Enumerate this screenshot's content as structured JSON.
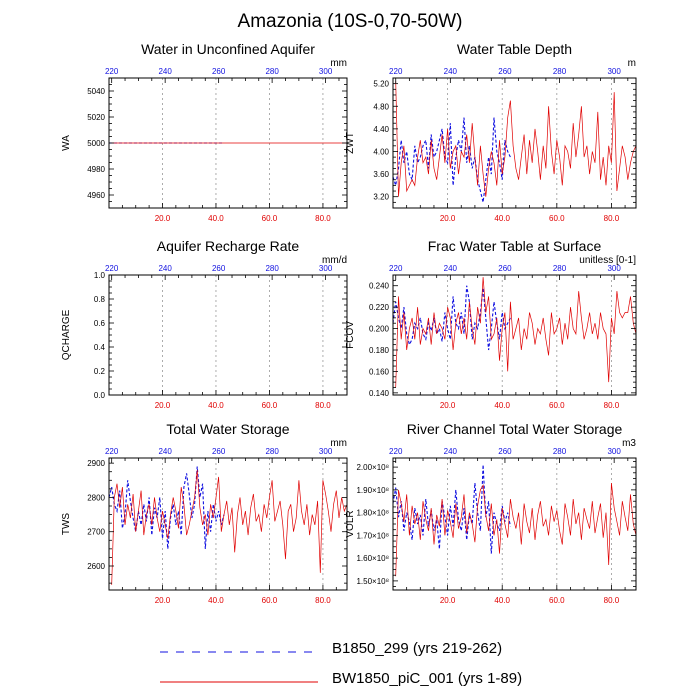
{
  "figure": {
    "title": "Amazonia (10S-0,70-50W)"
  },
  "colors": {
    "blue": "#1010e0",
    "red": "#e00000",
    "grid": "#999999",
    "axis": "#000000"
  },
  "legend": [
    {
      "label": "B1850_299 (yrs 219-262)",
      "color": "#1010e0",
      "style": "dashed"
    },
    {
      "label": "BW1850_piC_001 (yrs 1-89)",
      "color": "#e00000",
      "style": "solid"
    }
  ],
  "chart_data": [
    {
      "type": "line",
      "id": "wa",
      "title": "Water in Unconfined Aquifer",
      "ylabel": "WA",
      "units": "mm",
      "xlim_bottom": [
        0,
        89
      ],
      "xticks_bottom": [
        20,
        40,
        60,
        80
      ],
      "xtick_labels_bottom": [
        "20.0",
        "40.0",
        "60.0",
        "80.0"
      ],
      "xlim_top": [
        219,
        308
      ],
      "xticks_top": [
        220,
        240,
        260,
        280,
        300
      ],
      "xtick_labels_top": [
        "220",
        "240",
        "260",
        "280",
        "300"
      ],
      "ylim": [
        4950,
        5050
      ],
      "yticks": [
        4960,
        4980,
        5000,
        5020,
        5040
      ],
      "ytick_labels": [
        "4960",
        "4980",
        "5000",
        "5020",
        "5040"
      ],
      "series": [
        {
          "name": "B1850_299 (yrs 219-262)",
          "axis": "top",
          "x_start": 219,
          "values": [
            5000,
            5000,
            5000,
            5000,
            5000,
            5000,
            5000,
            5000,
            5000,
            5000,
            5000,
            5000,
            5000,
            5000,
            5000,
            5000,
            5000,
            5000,
            5000,
            5000,
            5000,
            5000,
            5000,
            5000,
            5000,
            5000,
            5000,
            5000,
            5000,
            5000,
            5000,
            5000,
            5000,
            5000,
            5000,
            5000,
            5000,
            5000,
            5000,
            5000,
            5000,
            5000,
            5000,
            5000
          ]
        },
        {
          "name": "BW1850_piC_001 (yrs 1-89)",
          "axis": "bottom",
          "x_start": 1,
          "values": [
            5000,
            5000,
            5000,
            5000,
            5000,
            5000,
            5000,
            5000,
            5000,
            5000,
            5000,
            5000,
            5000,
            5000,
            5000,
            5000,
            5000,
            5000,
            5000,
            5000,
            5000,
            5000,
            5000,
            5000,
            5000,
            5000,
            5000,
            5000,
            5000,
            5000,
            5000,
            5000,
            5000,
            5000,
            5000,
            5000,
            5000,
            5000,
            5000,
            5000,
            5000,
            5000,
            5000,
            5000,
            5000,
            5000,
            5000,
            5000,
            5000,
            5000,
            5000,
            5000,
            5000,
            5000,
            5000,
            5000,
            5000,
            5000,
            5000,
            5000,
            5000,
            5000,
            5000,
            5000,
            5000,
            5000,
            5000,
            5000,
            5000,
            5000,
            5000,
            5000,
            5000,
            5000,
            5000,
            5000,
            5000,
            5000,
            5000,
            5000,
            5000,
            5000,
            5000,
            5000,
            5000,
            5000,
            5000,
            5000,
            5000
          ]
        }
      ]
    },
    {
      "type": "line",
      "id": "zwt",
      "title": "Water Table Depth",
      "ylabel": "ZWT",
      "units": "m",
      "xlim_bottom": [
        0,
        89
      ],
      "xticks_bottom": [
        20,
        40,
        60,
        80
      ],
      "xtick_labels_bottom": [
        "20.0",
        "40.0",
        "60.0",
        "80.0"
      ],
      "xlim_top": [
        219,
        308
      ],
      "xticks_top": [
        220,
        240,
        260,
        280,
        300
      ],
      "xtick_labels_top": [
        "220",
        "240",
        "260",
        "280",
        "300"
      ],
      "ylim": [
        3.0,
        5.3
      ],
      "yticks": [
        3.2,
        3.6,
        4.0,
        4.4,
        4.8,
        5.2
      ],
      "ytick_labels": [
        "3.20",
        "3.60",
        "4.00",
        "4.40",
        "4.80",
        "5.20"
      ],
      "series": [
        {
          "name": "B1850_299 (yrs 219-262)",
          "axis": "top",
          "x_start": 219,
          "values": [
            3.55,
            3.4,
            3.7,
            4.2,
            3.8,
            4.0,
            3.6,
            3.5,
            4.1,
            3.8,
            3.9,
            4.1,
            4.2,
            3.7,
            4.3,
            3.9,
            4.0,
            4.2,
            4.4,
            3.9,
            3.8,
            4.5,
            3.4,
            3.9,
            4.2,
            4.0,
            4.6,
            3.8,
            4.1,
            3.7,
            3.9,
            3.5,
            3.3,
            3.1,
            3.5,
            3.9,
            3.6,
            4.6,
            4.0,
            3.8,
            3.5,
            4.2,
            4.0,
            3.9
          ]
        },
        {
          "name": "BW1850_piC_001 (yrs 1-89)",
          "axis": "bottom",
          "x_start": 1,
          "values": [
            5.25,
            3.2,
            3.8,
            4.1,
            3.3,
            3.4,
            3.5,
            3.4,
            3.9,
            4.2,
            3.8,
            3.9,
            3.6,
            4.2,
            3.7,
            3.5,
            3.9,
            4.3,
            3.8,
            4.4,
            3.7,
            4.0,
            4.1,
            3.6,
            4.0,
            3.9,
            4.3,
            3.8,
            4.5,
            3.9,
            3.4,
            4.1,
            3.6,
            3.2,
            3.7,
            4.0,
            3.8,
            3.4,
            4.2,
            3.6,
            3.9,
            4.6,
            4.9,
            4.1,
            3.7,
            3.5,
            3.9,
            4.3,
            3.6,
            4.2,
            3.8,
            4.4,
            4.0,
            3.5,
            4.1,
            3.7,
            4.8,
            4.0,
            3.6,
            4.2,
            3.9,
            3.4,
            4.1,
            4.0,
            3.7,
            4.5,
            3.9,
            4.3,
            4.8,
            3.9,
            4.1,
            3.6,
            4.0,
            3.8,
            4.7,
            3.5,
            3.9,
            3.4,
            4.1,
            3.8,
            5.05,
            3.3,
            3.7,
            4.1,
            3.9,
            3.5,
            3.8,
            4.0,
            4.1
          ]
        }
      ]
    },
    {
      "type": "line",
      "id": "qcharge",
      "title": "Aquifer Recharge Rate",
      "ylabel": "QCHARGE",
      "units": "mm/d",
      "xlim_bottom": [
        0,
        89
      ],
      "xticks_bottom": [
        20,
        40,
        60,
        80
      ],
      "xtick_labels_bottom": [
        "20.0",
        "40.0",
        "60.0",
        "80.0"
      ],
      "xlim_top": [
        219,
        308
      ],
      "xticks_top": [
        220,
        240,
        260,
        280,
        300
      ],
      "xtick_labels_top": [
        "220",
        "240",
        "260",
        "280",
        "300"
      ],
      "ylim": [
        0.0,
        1.0
      ],
      "yticks": [
        0.0,
        0.2,
        0.4,
        0.6,
        0.8,
        1.0
      ],
      "ytick_labels": [
        "0.0",
        "0.2",
        "0.4",
        "0.6",
        "0.8",
        "1.0"
      ],
      "series": []
    },
    {
      "type": "line",
      "id": "fcov",
      "title": "Frac Water Table at Surface",
      "ylabel": "FCOV",
      "units": "unitless [0-1]",
      "xlim_bottom": [
        0,
        89
      ],
      "xticks_bottom": [
        20,
        40,
        60,
        80
      ],
      "xtick_labels_bottom": [
        "20.0",
        "40.0",
        "60.0",
        "80.0"
      ],
      "xlim_top": [
        219,
        308
      ],
      "xticks_top": [
        220,
        240,
        260,
        280,
        300
      ],
      "xtick_labels_top": [
        "220",
        "240",
        "260",
        "280",
        "300"
      ],
      "ylim": [
        0.138,
        0.25
      ],
      "yticks": [
        0.14,
        0.16,
        0.18,
        0.2,
        0.22,
        0.24
      ],
      "ytick_labels": [
        "0.140",
        "0.160",
        "0.180",
        "0.200",
        "0.220",
        "0.240"
      ],
      "series": [
        {
          "name": "B1850_299 (yrs 219-262)",
          "axis": "top",
          "x_start": 219,
          "values": [
            0.205,
            0.225,
            0.21,
            0.2,
            0.22,
            0.195,
            0.185,
            0.19,
            0.205,
            0.2,
            0.21,
            0.195,
            0.19,
            0.205,
            0.198,
            0.21,
            0.195,
            0.2,
            0.188,
            0.215,
            0.2,
            0.19,
            0.23,
            0.205,
            0.2,
            0.215,
            0.195,
            0.24,
            0.225,
            0.19,
            0.205,
            0.2,
            0.215,
            0.238,
            0.21,
            0.18,
            0.2,
            0.225,
            0.205,
            0.19,
            0.215,
            0.2,
            0.205,
            0.21
          ]
        },
        {
          "name": "BW1850_piC_001 (yrs 1-89)",
          "axis": "bottom",
          "x_start": 1,
          "values": [
            0.145,
            0.23,
            0.19,
            0.215,
            0.18,
            0.2,
            0.21,
            0.19,
            0.22,
            0.185,
            0.2,
            0.195,
            0.21,
            0.185,
            0.215,
            0.195,
            0.205,
            0.2,
            0.19,
            0.22,
            0.21,
            0.18,
            0.205,
            0.215,
            0.195,
            0.21,
            0.19,
            0.225,
            0.2,
            0.185,
            0.22,
            0.205,
            0.248,
            0.215,
            0.23,
            0.19,
            0.195,
            0.21,
            0.17,
            0.2,
            0.215,
            0.16,
            0.225,
            0.19,
            0.2,
            0.21,
            0.18,
            0.2,
            0.19,
            0.215,
            0.205,
            0.185,
            0.2,
            0.195,
            0.21,
            0.19,
            0.175,
            0.215,
            0.195,
            0.2,
            0.21,
            0.185,
            0.205,
            0.19,
            0.22,
            0.2,
            0.195,
            0.235,
            0.21,
            0.19,
            0.2,
            0.215,
            0.195,
            0.205,
            0.19,
            0.215,
            0.2,
            0.195,
            0.15,
            0.21,
            0.195,
            0.235,
            0.215,
            0.21,
            0.215,
            0.215,
            0.23,
            0.205,
            0.195
          ]
        }
      ]
    },
    {
      "type": "line",
      "id": "tws",
      "title": "Total Water Storage",
      "ylabel": "TWS",
      "units": "mm",
      "xlim_bottom": [
        0,
        89
      ],
      "xticks_bottom": [
        20,
        40,
        60,
        80
      ],
      "xtick_labels_bottom": [
        "20.0",
        "40.0",
        "60.0",
        "80.0"
      ],
      "xlim_top": [
        219,
        308
      ],
      "xticks_top": [
        220,
        240,
        260,
        280,
        300
      ],
      "xtick_labels_top": [
        "220",
        "240",
        "260",
        "280",
        "300"
      ],
      "ylim": [
        2530,
        2915
      ],
      "yticks": [
        2600,
        2700,
        2800,
        2900
      ],
      "ytick_labels": [
        "2600",
        "2700",
        "2800",
        "2900"
      ],
      "series": [
        {
          "name": "B1850_299 (yrs 219-262)",
          "axis": "top",
          "x_start": 219,
          "values": [
            2800,
            2830,
            2780,
            2760,
            2820,
            2710,
            2750,
            2850,
            2790,
            2740,
            2700,
            2760,
            2720,
            2780,
            2730,
            2800,
            2690,
            2770,
            2740,
            2800,
            2680,
            2760,
            2650,
            2740,
            2780,
            2720,
            2760,
            2690,
            2830,
            2870,
            2810,
            2740,
            2780,
            2890,
            2800,
            2840,
            2650,
            2760,
            2700,
            2780,
            2730,
            2760,
            2720,
            2750
          ]
        },
        {
          "name": "BW1850_piC_001 (yrs 1-89)",
          "axis": "bottom",
          "x_start": 1,
          "values": [
            2545,
            2800,
            2840,
            2770,
            2830,
            2720,
            2780,
            2740,
            2810,
            2700,
            2760,
            2820,
            2690,
            2750,
            2780,
            2720,
            2800,
            2740,
            2700,
            2760,
            2720,
            2680,
            2750,
            2800,
            2760,
            2710,
            2830,
            2780,
            2690,
            2720,
            2760,
            2800,
            2880,
            2770,
            2720,
            2750,
            2690,
            2780,
            2740,
            2800,
            2860,
            2700,
            2750,
            2790,
            2720,
            2770,
            2640,
            2750,
            2800,
            2720,
            2760,
            2690,
            2770,
            2810,
            2730,
            2750,
            2700,
            2780,
            2740,
            2800,
            2850,
            2730,
            2760,
            2790,
            2720,
            2620,
            2760,
            2780,
            2700,
            2740,
            2850,
            2760,
            2720,
            2780,
            2690,
            2750,
            2720,
            2790,
            2580,
            2850,
            2810,
            2760,
            2700,
            2780,
            2820,
            2740,
            2800,
            2760,
            2780
          ]
        }
      ]
    },
    {
      "type": "line",
      "id": "volr",
      "title": "River Channel Total Water Storage",
      "ylabel": "VOLR",
      "units": "m3",
      "xlim_bottom": [
        0,
        89
      ],
      "xticks_bottom": [
        20,
        40,
        60,
        80
      ],
      "xtick_labels_bottom": [
        "20.0",
        "40.0",
        "60.0",
        "80.0"
      ],
      "xlim_top": [
        219,
        308
      ],
      "xticks_top": [
        220,
        240,
        260,
        280,
        300
      ],
      "xtick_labels_top": [
        "220",
        "240",
        "260",
        "280",
        "300"
      ],
      "ylim": [
        1.46,
        2.04
      ],
      "yticks": [
        1.5,
        1.6,
        1.7,
        1.8,
        1.9,
        2.0
      ],
      "ytick_labels": [
        "1.50×10⁸",
        "1.60×10⁸",
        "1.70×10⁸",
        "1.80×10⁸",
        "1.90×10⁸",
        "2.00×10⁸"
      ],
      "series": [
        {
          "name": "B1850_299 (yrs 219-262)",
          "axis": "top",
          "x_start": 219,
          "values": [
            1.84,
            1.91,
            1.78,
            1.85,
            1.72,
            1.8,
            1.76,
            1.68,
            1.82,
            1.75,
            1.79,
            1.7,
            1.86,
            1.74,
            1.81,
            1.72,
            1.77,
            1.64,
            1.85,
            1.78,
            1.7,
            1.83,
            1.74,
            1.9,
            1.77,
            1.72,
            1.82,
            1.68,
            1.79,
            1.75,
            1.93,
            1.8,
            1.72,
            2.01,
            1.78,
            1.85,
            1.62,
            1.8,
            1.75,
            1.72,
            1.83,
            1.76,
            1.8,
            1.74
          ]
        },
        {
          "name": "BW1850_piC_001 (yrs 1-89)",
          "axis": "bottom",
          "x_start": 1,
          "values": [
            1.52,
            1.9,
            1.84,
            1.76,
            1.88,
            1.7,
            1.83,
            1.75,
            1.8,
            1.68,
            1.85,
            1.77,
            1.72,
            1.82,
            1.66,
            1.79,
            1.74,
            1.86,
            1.7,
            1.81,
            1.76,
            1.69,
            1.84,
            1.73,
            1.78,
            1.88,
            1.71,
            1.8,
            1.75,
            1.67,
            1.83,
            1.9,
            1.92,
            1.79,
            1.72,
            1.84,
            1.7,
            1.77,
            1.62,
            1.82,
            1.75,
            1.69,
            1.86,
            1.78,
            1.73,
            1.8,
            1.66,
            1.84,
            1.76,
            1.71,
            1.82,
            1.68,
            1.79,
            1.85,
            1.74,
            1.77,
            1.7,
            1.83,
            1.76,
            1.81,
            1.72,
            1.66,
            1.84,
            1.78,
            1.7,
            1.86,
            1.75,
            1.8,
            1.68,
            1.82,
            1.77,
            1.73,
            1.85,
            1.71,
            1.78,
            1.84,
            1.69,
            1.8,
            1.57,
            1.93,
            1.82,
            1.76,
            1.7,
            1.85,
            1.78,
            1.72,
            1.88,
            1.75,
            1.7
          ]
        }
      ]
    }
  ]
}
